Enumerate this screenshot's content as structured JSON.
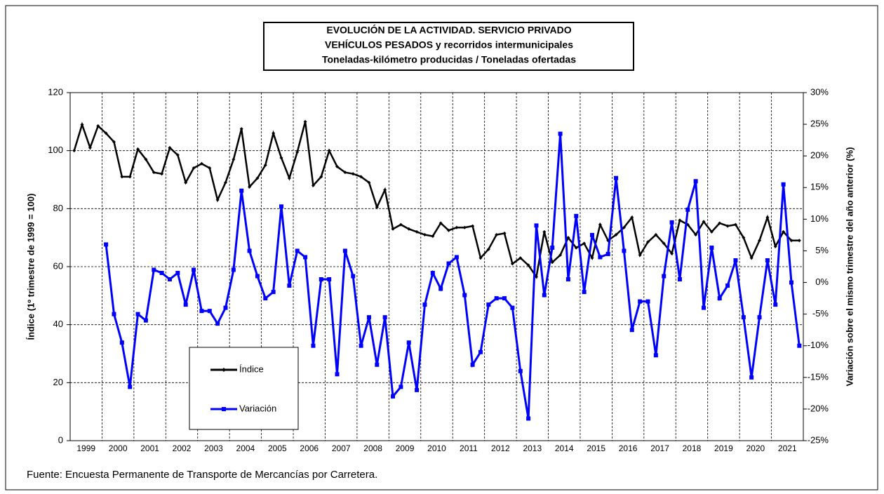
{
  "chart_data": {
    "type": "line",
    "title": [
      "EVOLUCIÓN DE LA ACTIVIDAD. SERVICIO PRIVADO",
      "VEHÍCULOS PESADOS y recorridos intermunicipales",
      "Toneladas-kilómetro producidas / Toneladas ofertadas"
    ],
    "ylabel": "Índice (1º trimestre de 1999 = 100)",
    "y2label": "Variación sobre el mismo trimestre del año anterior (%)",
    "source": "Fuente: Encuesta Permanente de Transporte de Mercancías por Carretera.",
    "categories": [
      "1999",
      null,
      null,
      null,
      "2000",
      null,
      null,
      null,
      "2001",
      null,
      null,
      null,
      "2002",
      null,
      null,
      null,
      "2003",
      null,
      null,
      null,
      "2004",
      null,
      null,
      null,
      "2005",
      null,
      null,
      null,
      "2006",
      null,
      null,
      null,
      "2007",
      null,
      null,
      null,
      "2008",
      null,
      null,
      null,
      "2009",
      null,
      null,
      null,
      "2010",
      null,
      null,
      null,
      "2011",
      null,
      null,
      null,
      "2012",
      null,
      null,
      null,
      "2013",
      null,
      null,
      null,
      "2014",
      null,
      null,
      null,
      "2015",
      null,
      null,
      null,
      "2016",
      null,
      null,
      null,
      "2017",
      null,
      null,
      null,
      "2018",
      null,
      null,
      null,
      "2019",
      null,
      null,
      null,
      "2020",
      null,
      null,
      null,
      "2021",
      null,
      null,
      null
    ],
    "series": [
      {
        "name": "Índice",
        "color": "#000000",
        "values": [
          100,
          109,
          101,
          108.5,
          106,
          103,
          91,
          91,
          100.5,
          97,
          92.5,
          92,
          101,
          98.5,
          89,
          94,
          95.5,
          94,
          83,
          89,
          97,
          107.5,
          87.5,
          90.5,
          95,
          106,
          97.5,
          90.5,
          99.5,
          110,
          88,
          91,
          100,
          94.5,
          92.5,
          92,
          91,
          89,
          80.5,
          86.5,
          73,
          74.5,
          73,
          72,
          71,
          70.5,
          75,
          72.5,
          73.5,
          73.5,
          74,
          63,
          66,
          71,
          71.5,
          61,
          63,
          60.5,
          56.5,
          72,
          61.5,
          64,
          70,
          66.5,
          68,
          63,
          74.5,
          69,
          71,
          73.5,
          77,
          64,
          68.5,
          71,
          68,
          64.5,
          76,
          74.5,
          71,
          75.5,
          72,
          75,
          74,
          74.5,
          70,
          63,
          69,
          77,
          67,
          72,
          69,
          69
        ]
      },
      {
        "name": "Variación",
        "color": "#0000ff",
        "axis": "y2",
        "values": [
          null,
          null,
          null,
          null,
          6,
          -5,
          -9.5,
          -16.5,
          -5,
          -6,
          2,
          1.5,
          0.5,
          1.5,
          -3.5,
          2,
          -4.5,
          -4.5,
          -6.5,
          -4,
          2,
          14.5,
          5,
          1,
          -2.5,
          -1.5,
          12,
          -0.5,
          5,
          4,
          -10,
          0.5,
          0.5,
          -14.5,
          5,
          1,
          -10,
          -5.5,
          -13,
          -5.5,
          -18,
          -16.5,
          -9.5,
          -17,
          -3.5,
          1.5,
          -1,
          3,
          4,
          -2,
          -13,
          -11,
          -3.5,
          -2.5,
          -2.5,
          -4,
          -14,
          -21.5,
          9,
          -2,
          5.5,
          23.5,
          0.5,
          10.5,
          -1.5,
          7.5,
          4,
          4.5,
          16.5,
          5,
          -7.5,
          -3,
          -3,
          -11.5,
          1,
          9.5,
          0.5,
          11.5,
          16,
          -4,
          5.5,
          -2.5,
          -0.5,
          3.5,
          -5.5,
          -15,
          -5.5,
          3.5,
          -3.5,
          15.5,
          0,
          -10
        ]
      }
    ],
    "ylim": [
      0,
      120
    ],
    "yticks": [
      0,
      20,
      40,
      60,
      80,
      100,
      120
    ],
    "y2lim": [
      -25,
      30
    ],
    "y2ticks": [
      {
        "value": -25,
        "label": "-25%"
      },
      {
        "value": -20,
        "label": "-20%"
      },
      {
        "value": -15,
        "label": "-15%"
      },
      {
        "value": -10,
        "label": "-10%"
      },
      {
        "value": -5,
        "label": "-5%"
      },
      {
        "value": 0,
        "label": "0%"
      },
      {
        "value": 5,
        "label": "5%"
      },
      {
        "value": 10,
        "label": "10%"
      },
      {
        "value": 15,
        "label": "15%"
      },
      {
        "value": 20,
        "label": "20%"
      },
      {
        "value": 25,
        "label": "25%"
      },
      {
        "value": 30,
        "label": "30%"
      }
    ],
    "grid": true
  }
}
